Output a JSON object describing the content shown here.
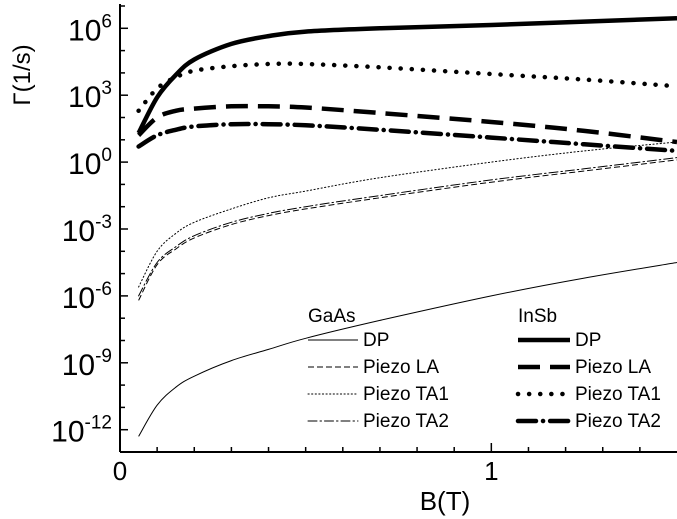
{
  "chart_data": {
    "type": "line",
    "xlabel": "B(T)",
    "ylabel": "Γ(1/s)",
    "y_scale": "log",
    "xlim": [
      0,
      1.5
    ],
    "ylim_exponent": [
      -13,
      7
    ],
    "x_ticks": [
      {
        "value": 0,
        "label": "0"
      },
      {
        "value": 1,
        "label": "1"
      }
    ],
    "y_ticks": [
      {
        "exp": -12,
        "base": "10",
        "sup": "-12"
      },
      {
        "exp": -9,
        "base": "10",
        "sup": "-9"
      },
      {
        "exp": -6,
        "base": "10",
        "sup": "-6"
      },
      {
        "exp": -3,
        "base": "10",
        "sup": "-3"
      },
      {
        "exp": 0,
        "base": "10",
        "sup": "0"
      },
      {
        "exp": 3,
        "base": "10",
        "sup": "3"
      },
      {
        "exp": 6,
        "base": "10",
        "sup": "6"
      }
    ],
    "legend_groups": [
      {
        "title": "GaAs",
        "placement": "bottom-center"
      },
      {
        "title": "InSb",
        "placement": "bottom-right"
      }
    ],
    "series": [
      {
        "name": "DP",
        "group": "GaAs",
        "style": "solid",
        "weight": "thin",
        "x": [
          0.05,
          0.1,
          0.15,
          0.2,
          0.3,
          0.4,
          0.5,
          0.7,
          1.0,
          1.25,
          1.5
        ],
        "log10y": [
          -12.3,
          -10.9,
          -10.1,
          -9.6,
          -8.9,
          -8.4,
          -7.9,
          -7.1,
          -6.0,
          -5.2,
          -4.5
        ]
      },
      {
        "name": "Piezo LA",
        "group": "GaAs",
        "style": "dashed",
        "weight": "thin",
        "x": [
          0.05,
          0.1,
          0.15,
          0.2,
          0.3,
          0.4,
          0.5,
          0.7,
          1.0,
          1.25,
          1.5
        ],
        "log10y": [
          -6.2,
          -4.6,
          -3.9,
          -3.4,
          -2.8,
          -2.4,
          -2.1,
          -1.6,
          -0.9,
          -0.4,
          0.1
        ]
      },
      {
        "name": "Piezo TA1",
        "group": "GaAs",
        "style": "dotted",
        "weight": "thin",
        "x": [
          0.05,
          0.1,
          0.15,
          0.2,
          0.3,
          0.4,
          0.5,
          0.7,
          1.0,
          1.25,
          1.5
        ],
        "log10y": [
          -5.6,
          -4.0,
          -3.2,
          -2.7,
          -2.1,
          -1.6,
          -1.3,
          -0.7,
          0.0,
          0.5,
          0.9
        ]
      },
      {
        "name": "Piezo TA2",
        "group": "GaAs",
        "style": "dashdot",
        "weight": "thin",
        "x": [
          0.05,
          0.1,
          0.15,
          0.2,
          0.3,
          0.4,
          0.5,
          0.7,
          1.0,
          1.25,
          1.5
        ],
        "log10y": [
          -6.0,
          -4.5,
          -3.8,
          -3.3,
          -2.7,
          -2.3,
          -2.0,
          -1.5,
          -0.8,
          -0.3,
          0.2
        ]
      },
      {
        "name": "DP",
        "group": "InSb",
        "style": "solid",
        "weight": "thick",
        "x": [
          0.05,
          0.1,
          0.15,
          0.2,
          0.3,
          0.4,
          0.5,
          0.7,
          1.0,
          1.25,
          1.5
        ],
        "log10y": [
          1.3,
          2.9,
          3.9,
          4.6,
          5.3,
          5.65,
          5.85,
          6.0,
          6.15,
          6.3,
          6.45
        ]
      },
      {
        "name": "Piezo LA",
        "group": "InSb",
        "style": "dashed",
        "weight": "thick",
        "x": [
          0.05,
          0.1,
          0.15,
          0.2,
          0.3,
          0.4,
          0.5,
          0.7,
          1.0,
          1.25,
          1.5
        ],
        "log10y": [
          1.2,
          2.0,
          2.3,
          2.4,
          2.5,
          2.5,
          2.45,
          2.2,
          1.8,
          1.4,
          0.9
        ]
      },
      {
        "name": "Piezo TA1",
        "group": "InSb",
        "style": "dotted",
        "weight": "thick",
        "x": [
          0.05,
          0.1,
          0.15,
          0.2,
          0.3,
          0.4,
          0.5,
          0.7,
          1.0,
          1.25,
          1.5
        ],
        "log10y": [
          2.3,
          3.3,
          3.8,
          4.1,
          4.3,
          4.4,
          4.4,
          4.25,
          3.95,
          3.7,
          3.4
        ]
      },
      {
        "name": "Piezo TA2",
        "group": "InSb",
        "style": "dashdot",
        "weight": "thick",
        "x": [
          0.05,
          0.1,
          0.15,
          0.2,
          0.3,
          0.4,
          0.5,
          0.7,
          1.0,
          1.25,
          1.5
        ],
        "log10y": [
          0.7,
          1.2,
          1.45,
          1.6,
          1.7,
          1.7,
          1.65,
          1.45,
          1.1,
          0.8,
          0.5
        ]
      }
    ]
  }
}
